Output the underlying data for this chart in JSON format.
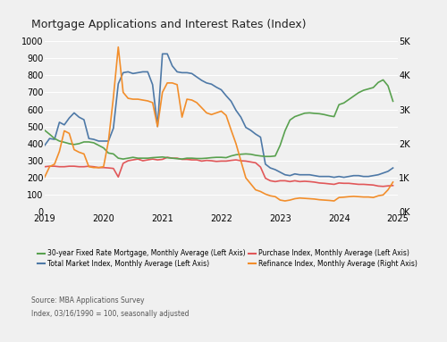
{
  "title": "Mortgage Applications and Interest Rates (Index)",
  "source_line1": "Source: MBA Applications Survey",
  "source_line2": "Index, 03/16/1990 = 100, seasonally adjusted",
  "left_ylim": [
    0,
    1000
  ],
  "right_ylim": [
    0,
    5000
  ],
  "left_yticks": [
    0,
    100,
    200,
    300,
    400,
    500,
    600,
    700,
    800,
    900,
    1000
  ],
  "right_yticks": [
    0,
    1000,
    2000,
    3000,
    4000,
    5000
  ],
  "right_yticklabels": [
    "0K",
    "1K",
    "2K",
    "3K",
    "4K",
    "5K"
  ],
  "background_color": "#f0f0f0",
  "grid_color": "#ffffff",
  "colors": {
    "green": "#59a14f",
    "blue": "#4e79a7",
    "red": "#e15759",
    "orange": "#f28e2b"
  },
  "legend": [
    {
      "label": "30-year Fixed Rate Mortgage, Monthly Average (Left Axis)",
      "color": "#59a14f"
    },
    {
      "label": "Total Market Index, Monthly Average (Left Axis)",
      "color": "#4e79a7"
    },
    {
      "label": "Purchase Index, Monthly Average (Left Axis)",
      "color": "#e15759"
    },
    {
      "label": "Refinance Index, Monthly Average (Right Axis)",
      "color": "#f28e2b"
    }
  ],
  "dates": [
    2019.0,
    2019.083,
    2019.167,
    2019.25,
    2019.333,
    2019.417,
    2019.5,
    2019.583,
    2019.667,
    2019.75,
    2019.833,
    2019.917,
    2020.0,
    2020.083,
    2020.167,
    2020.25,
    2020.333,
    2020.417,
    2020.5,
    2020.583,
    2020.667,
    2020.75,
    2020.833,
    2020.917,
    2021.0,
    2021.083,
    2021.167,
    2021.25,
    2021.333,
    2021.417,
    2021.5,
    2021.583,
    2021.667,
    2021.75,
    2021.833,
    2021.917,
    2022.0,
    2022.083,
    2022.167,
    2022.25,
    2022.333,
    2022.417,
    2022.5,
    2022.583,
    2022.667,
    2022.75,
    2022.833,
    2022.917,
    2023.0,
    2023.083,
    2023.167,
    2023.25,
    2023.333,
    2023.417,
    2023.5,
    2023.583,
    2023.667,
    2023.75,
    2023.833,
    2023.917,
    2024.0,
    2024.083,
    2024.167,
    2024.25,
    2024.333,
    2024.417,
    2024.5,
    2024.583,
    2024.667,
    2024.75,
    2024.833,
    2024.917
  ],
  "green_data": [
    478,
    455,
    430,
    415,
    408,
    400,
    395,
    400,
    410,
    410,
    405,
    390,
    375,
    345,
    340,
    315,
    310,
    315,
    320,
    315,
    315,
    315,
    318,
    320,
    322,
    318,
    315,
    312,
    310,
    315,
    315,
    313,
    313,
    315,
    318,
    320,
    320,
    318,
    328,
    335,
    338,
    340,
    338,
    332,
    328,
    325,
    325,
    328,
    390,
    475,
    538,
    558,
    568,
    578,
    580,
    577,
    575,
    570,
    563,
    558,
    628,
    638,
    658,
    678,
    698,
    712,
    720,
    728,
    758,
    773,
    738,
    648
  ],
  "blue_data": [
    390,
    430,
    425,
    525,
    510,
    550,
    580,
    555,
    540,
    430,
    425,
    415,
    415,
    415,
    490,
    750,
    815,
    820,
    810,
    815,
    820,
    820,
    745,
    500,
    925,
    925,
    855,
    820,
    815,
    815,
    810,
    790,
    770,
    755,
    748,
    730,
    715,
    680,
    648,
    595,
    555,
    495,
    478,
    456,
    438,
    280,
    258,
    248,
    233,
    218,
    213,
    223,
    218,
    218,
    218,
    213,
    208,
    208,
    208,
    203,
    208,
    203,
    208,
    213,
    213,
    208,
    208,
    213,
    218,
    228,
    238,
    258
  ],
  "red_data": [
    265,
    268,
    268,
    265,
    265,
    268,
    268,
    265,
    265,
    268,
    265,
    260,
    260,
    258,
    255,
    205,
    285,
    300,
    305,
    310,
    300,
    305,
    310,
    305,
    308,
    320,
    315,
    315,
    308,
    308,
    305,
    305,
    298,
    302,
    300,
    296,
    298,
    298,
    302,
    305,
    300,
    298,
    293,
    288,
    263,
    198,
    183,
    178,
    183,
    183,
    178,
    183,
    178,
    180,
    178,
    175,
    170,
    168,
    165,
    162,
    170,
    168,
    168,
    165,
    162,
    162,
    160,
    158,
    152,
    150,
    153,
    155
  ],
  "orange_data": [
    1025,
    1325,
    1400,
    1775,
    2375,
    2300,
    1825,
    1750,
    1700,
    1325,
    1300,
    1300,
    1325,
    2075,
    3350,
    4825,
    3500,
    3325,
    3300,
    3300,
    3275,
    3250,
    3200,
    2500,
    3500,
    3775,
    3775,
    3725,
    2775,
    3300,
    3275,
    3200,
    3050,
    2900,
    2850,
    2900,
    2950,
    2825,
    2400,
    2000,
    1500,
    1000,
    825,
    650,
    600,
    525,
    475,
    450,
    350,
    325,
    350,
    390,
    410,
    400,
    390,
    380,
    360,
    350,
    340,
    325,
    425,
    435,
    450,
    460,
    450,
    440,
    440,
    425,
    475,
    500,
    650,
    875
  ]
}
